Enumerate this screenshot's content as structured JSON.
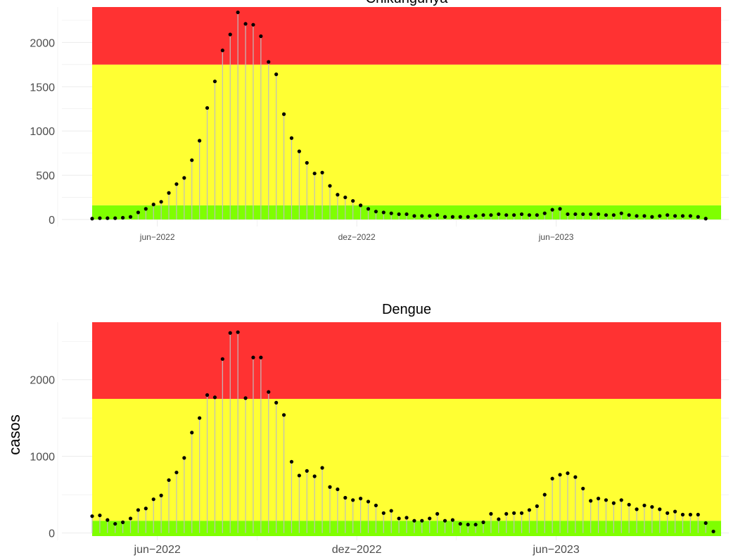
{
  "ylabel": "casos",
  "colors": {
    "red_zone": "#ff3232",
    "yellow_zone": "#ffff33",
    "green_zone": "#7fff00",
    "stem": "#bebebe",
    "point": "#000000",
    "grid": "#ebebeb",
    "tick_text": "#4d4d4d"
  },
  "chart_data": [
    {
      "type": "lollipop",
      "title": "Chikungunya",
      "xlabel": "",
      "ylabel": "",
      "grid": true,
      "ylim": [
        0,
        2400
      ],
      "yticks": [
        0,
        500,
        1000,
        1500,
        2000
      ],
      "xlim": [
        0,
        82
      ],
      "x_ticks": [
        {
          "x": 8.5,
          "label": "jun−2022"
        },
        {
          "x": 34.5,
          "label": "dez−2022"
        },
        {
          "x": 60.5,
          "label": "jun−2023"
        }
      ],
      "zones": [
        {
          "name": "baixo",
          "from": 0,
          "to": 160,
          "color": "#7fff00"
        },
        {
          "name": "medio",
          "from": 160,
          "to": 1750,
          "color": "#ffff33"
        },
        {
          "name": "alto",
          "from": 1750,
          "to": 2400,
          "color": "#ff3232"
        }
      ],
      "values": [
        10,
        15,
        15,
        15,
        20,
        30,
        80,
        120,
        170,
        200,
        300,
        400,
        470,
        670,
        890,
        1260,
        1560,
        1910,
        2090,
        2340,
        2210,
        2200,
        2070,
        1780,
        1640,
        1190,
        920,
        770,
        640,
        520,
        530,
        380,
        280,
        250,
        210,
        160,
        120,
        90,
        80,
        70,
        60,
        60,
        40,
        40,
        40,
        50,
        30,
        30,
        30,
        30,
        40,
        50,
        50,
        60,
        50,
        50,
        60,
        50,
        50,
        70,
        110,
        120,
        60,
        60,
        60,
        60,
        60,
        50,
        50,
        70,
        50,
        40,
        40,
        30,
        40,
        50,
        40,
        40,
        40,
        30,
        10
      ]
    },
    {
      "type": "lollipop",
      "title": "Dengue",
      "xlabel": "",
      "ylabel": "casos",
      "grid": true,
      "ylim": [
        -40,
        2750
      ],
      "yticks": [
        0,
        1000,
        2000
      ],
      "xlim": [
        0,
        82
      ],
      "x_ticks": [
        {
          "x": 8.5,
          "label": "jun−2022"
        },
        {
          "x": 34.5,
          "label": "dez−2022"
        },
        {
          "x": 60.5,
          "label": "jun−2023"
        }
      ],
      "zones": [
        {
          "name": "baixo",
          "from": -40,
          "to": 160,
          "color": "#7fff00"
        },
        {
          "name": "medio",
          "from": 160,
          "to": 1750,
          "color": "#ffff33"
        },
        {
          "name": "alto",
          "from": 1750,
          "to": 2750,
          "color": "#ff3232"
        }
      ],
      "values": [
        220,
        230,
        170,
        120,
        140,
        190,
        300,
        320,
        440,
        490,
        690,
        790,
        980,
        1310,
        1500,
        1800,
        1770,
        2270,
        2610,
        2620,
        1760,
        2290,
        2290,
        1840,
        1700,
        1540,
        930,
        750,
        810,
        740,
        850,
        600,
        570,
        460,
        430,
        450,
        410,
        360,
        260,
        290,
        190,
        200,
        160,
        160,
        190,
        250,
        160,
        170,
        120,
        110,
        110,
        140,
        250,
        180,
        250,
        260,
        260,
        300,
        350,
        500,
        710,
        760,
        780,
        730,
        580,
        420,
        450,
        430,
        390,
        430,
        370,
        310,
        360,
        340,
        310,
        260,
        280,
        240,
        240,
        240,
        130,
        20
      ]
    }
  ]
}
